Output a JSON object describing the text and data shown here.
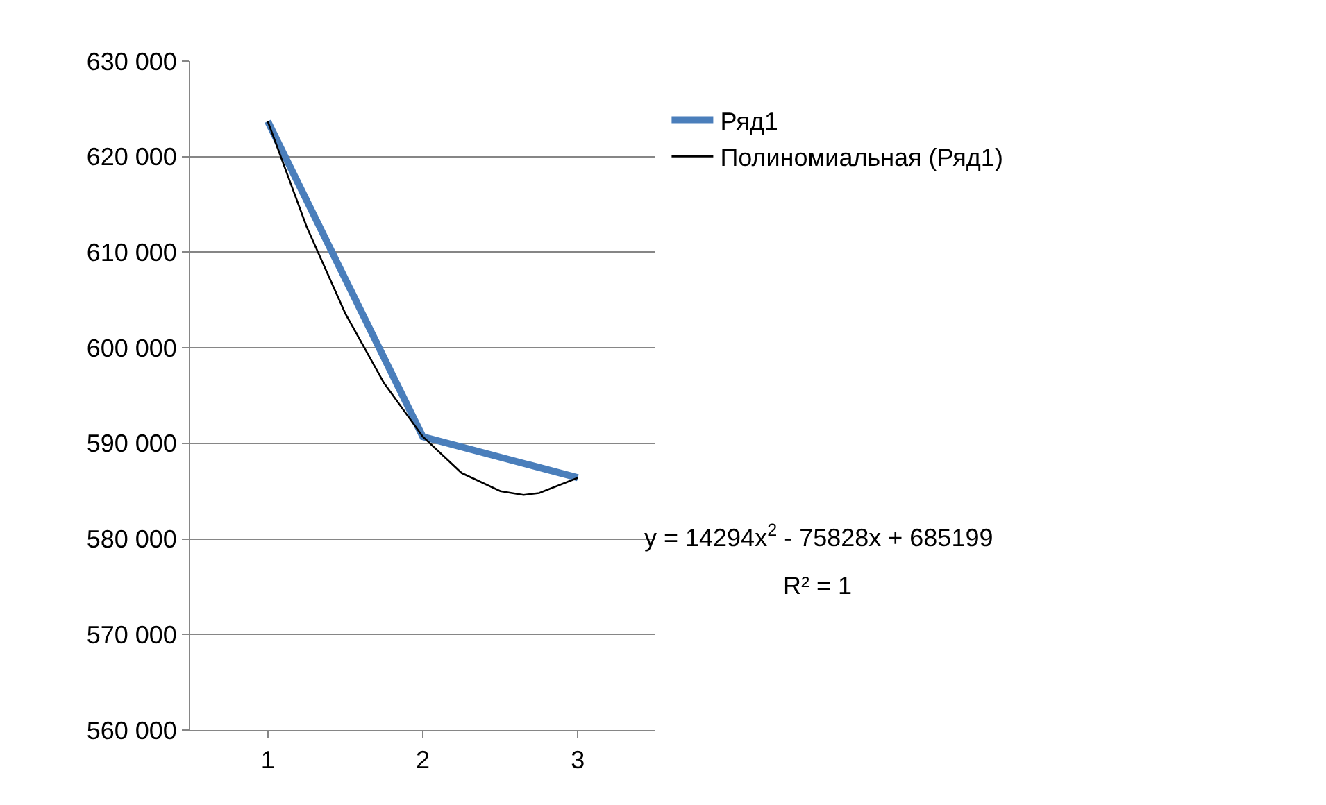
{
  "chart_data": {
    "type": "line",
    "x": [
      1,
      2,
      3
    ],
    "xlim": [
      0.5,
      3.5
    ],
    "xticks": [
      1,
      2,
      3
    ],
    "ylim": [
      560000,
      630000
    ],
    "yticks": [
      {
        "value": 560000,
        "label": "560 000"
      },
      {
        "value": 570000,
        "label": "570 000"
      },
      {
        "value": 580000,
        "label": "580 000"
      },
      {
        "value": 590000,
        "label": "590 000"
      },
      {
        "value": 600000,
        "label": "600 000"
      },
      {
        "value": 610000,
        "label": "610 000"
      },
      {
        "value": 620000,
        "label": "620 000"
      },
      {
        "value": 630000,
        "label": "630 000"
      }
    ],
    "grid": "y",
    "legend": "right",
    "marker": "none",
    "line_style": "solid",
    "series": [
      {
        "name": "Ряд1",
        "color": "#4a7ebb",
        "values": [
          623700,
          590700,
          586400
        ]
      },
      {
        "name": "Полиномиальная (Ряд1)",
        "type": "line",
        "color": "#000000",
        "x": [
          1,
          1.25,
          1.5,
          1.75,
          2,
          2.25,
          2.5,
          2.65,
          2.75,
          3
        ],
        "values": [
          623700,
          612700,
          603600,
          596300,
          590700,
          586900,
          585000,
          584600,
          584800,
          586400
        ]
      }
    ],
    "annotations": [
      "y = 14294x$^{2}$ - 75828x + 685199",
      "R² = 1"
    ]
  }
}
